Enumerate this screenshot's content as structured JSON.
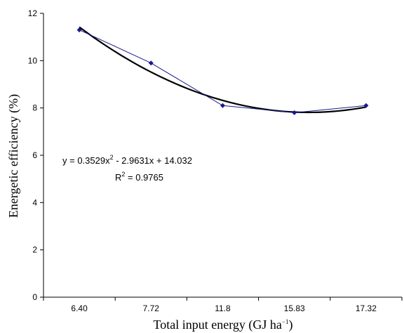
{
  "chart_data": {
    "type": "line",
    "categories": [
      "6.40",
      "7.72",
      "11.8",
      "15.83",
      "17.32"
    ],
    "series": [
      {
        "values": [
          11.3,
          9.9,
          8.1,
          7.8,
          8.1
        ],
        "color": "#1a1a8c",
        "marker": "diamond"
      }
    ],
    "trendline": {
      "type": "polynomial",
      "order": 2,
      "coefficients": [
        0.3529,
        -2.9631,
        14.032
      ],
      "color": "#000000",
      "equation_parts": [
        "y = 0.3529x",
        "2",
        " - 2.9631x + 14.032"
      ],
      "r2_parts": [
        "R",
        "2",
        " = 0.9765"
      ]
    },
    "xlabel_parts": [
      "Total input energy (GJ ha",
      "−1",
      ")"
    ],
    "ylabel": "Energetic efficiency (%)",
    "ylim": [
      0,
      12
    ],
    "yticks": [
      "0",
      "2",
      "4",
      "6",
      "8",
      "10",
      "12"
    ],
    "grid": false,
    "legend": "none"
  }
}
